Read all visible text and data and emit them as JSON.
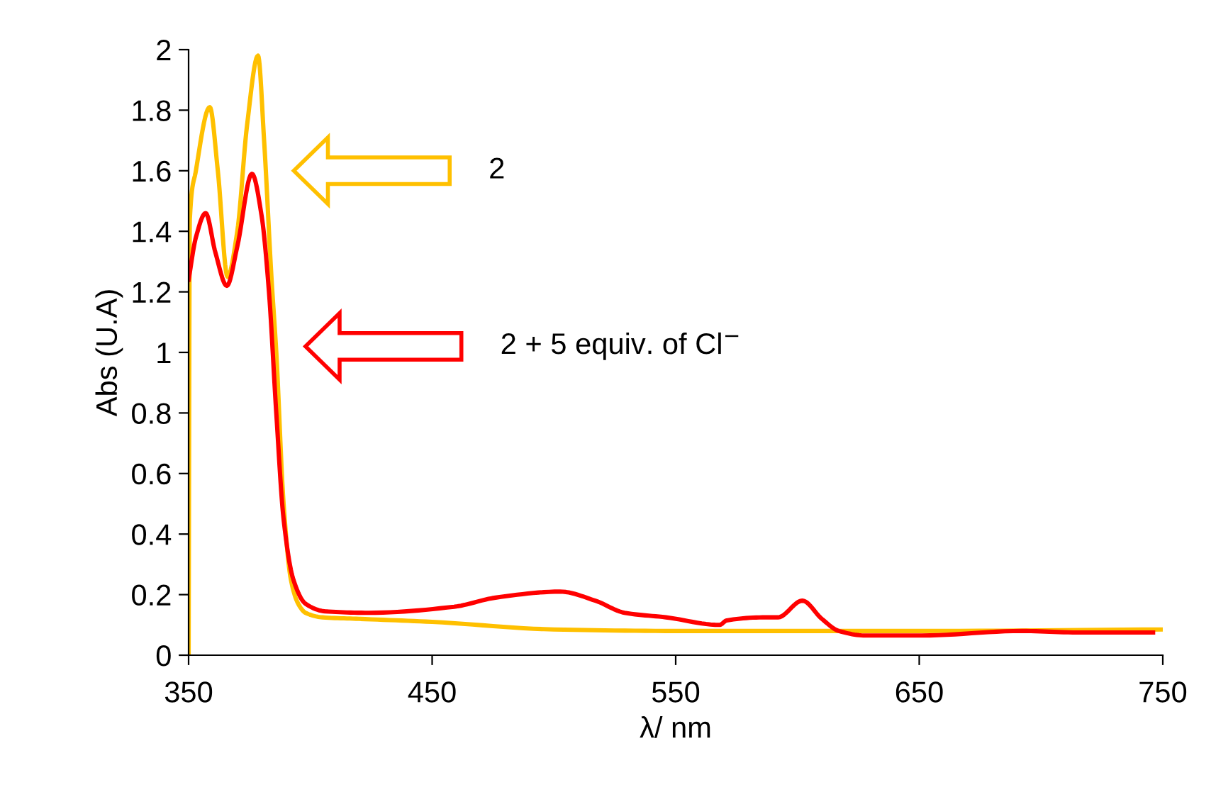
{
  "chart_data": {
    "type": "line",
    "xlabel": "λ/ nm",
    "ylabel": "Abs (U.A)",
    "xlim": [
      350,
      750
    ],
    "xticks": [
      350,
      450,
      550,
      650,
      750
    ],
    "ylim": [
      0,
      2
    ],
    "yticks": [
      0,
      0.2,
      0.4,
      0.6,
      0.8,
      1,
      1.2,
      1.4,
      1.6,
      1.8,
      2
    ],
    "grid": false,
    "legend": false,
    "marker": "none",
    "line_style": "solid",
    "series": [
      {
        "color": "#ffc000",
        "x": [
          350,
          350.5,
          353,
          358.7,
          362,
          366,
          370,
          374,
          378.5,
          381,
          384,
          386,
          389,
          392,
          395,
          398,
          405,
          420,
          450,
          500,
          550,
          650,
          750
        ],
        "values": [
          0,
          1.44,
          1.6,
          1.81,
          1.6,
          1.25,
          1.4,
          1.75,
          1.98,
          1.7,
          1.25,
          1.0,
          0.5,
          0.25,
          0.17,
          0.14,
          0.125,
          0.12,
          0.11,
          0.085,
          0.08,
          0.08,
          0.085
        ]
      },
      {
        "color": "#ff0000",
        "x": [
          350,
          353,
          357,
          361,
          365.7,
          370,
          376,
          380,
          383,
          386,
          389,
          393,
          398,
          406,
          424,
          459,
          476,
          502.5,
          517,
          529,
          546,
          568,
          571,
          587,
          592,
          602,
          610,
          617,
          628,
          651,
          692,
          715,
          746
        ],
        "values": [
          1.24,
          1.38,
          1.46,
          1.33,
          1.22,
          1.35,
          1.59,
          1.45,
          1.2,
          0.8,
          0.45,
          0.25,
          0.17,
          0.145,
          0.14,
          0.16,
          0.19,
          0.21,
          0.18,
          0.14,
          0.125,
          0.1,
          0.115,
          0.125,
          0.125,
          0.18,
          0.12,
          0.08,
          0.065,
          0.065,
          0.08,
          0.075,
          0.075
        ]
      }
    ],
    "annotations": [
      "2",
      "2 + 5 equiv. of Cl$^{−}$"
    ]
  }
}
